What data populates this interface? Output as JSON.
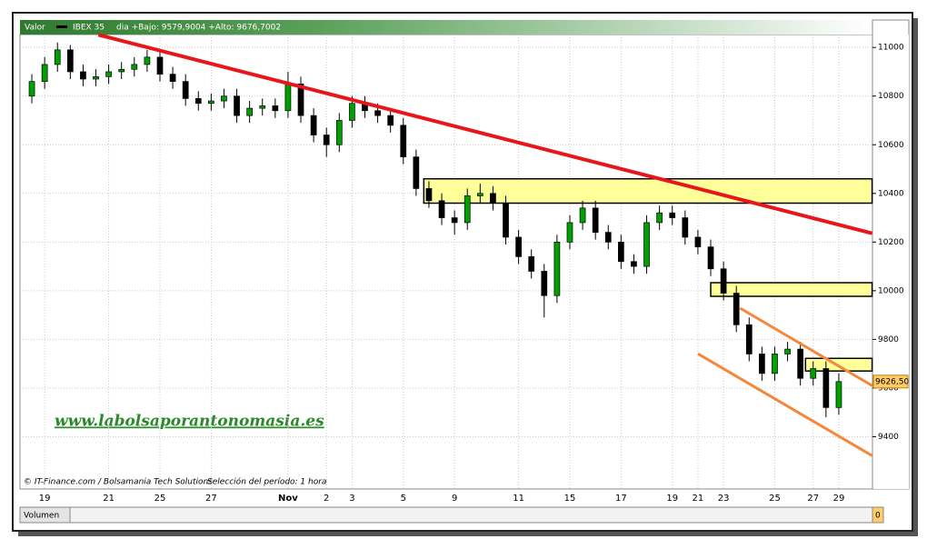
{
  "chart_data": {
    "type": "candlestick",
    "header": {
      "label": "Valor",
      "symbol": "IBEX 35",
      "range_text": "dia +Bajo: 9579,9004 +Alto: 9676,7002"
    },
    "footer": {
      "source": "© IT-Finance.com / Bolsamania Tech Solutions",
      "period": "Selección del período: 1 hora"
    },
    "watermark": "www.labolsaporantonomasia.es",
    "volume_label": "Volumen",
    "volume_value": "0",
    "categories": [
      null,
      "19",
      null,
      null,
      null,
      null,
      "21",
      null,
      null,
      null,
      "25",
      null,
      null,
      null,
      "27",
      null,
      null,
      null,
      null,
      null,
      "Nov",
      null,
      null,
      "2",
      null,
      "3",
      null,
      null,
      null,
      "5",
      null,
      null,
      null,
      "9",
      null,
      null,
      null,
      null,
      "11",
      null,
      null,
      null,
      "15",
      null,
      null,
      null,
      "17",
      null,
      null,
      null,
      "19",
      null,
      "21",
      null,
      "23",
      null,
      null,
      null,
      "25",
      null,
      null,
      "27",
      null,
      "29"
    ],
    "open": [
      10800,
      10860,
      10930,
      10990,
      10900,
      10870,
      10880,
      10900,
      10910,
      10930,
      10960,
      10890,
      10860,
      10790,
      10770,
      10780,
      10800,
      10720,
      10750,
      10760,
      10740,
      10850,
      10720,
      10640,
      10600,
      10700,
      10770,
      10740,
      10720,
      10680,
      10550,
      10420,
      10370,
      10300,
      10280,
      10390,
      10400,
      10360,
      10220,
      10140,
      10080,
      9980,
      10200,
      10280,
      10340,
      10240,
      10200,
      10120,
      10100,
      10280,
      10320,
      10300,
      10220,
      10180,
      10090,
      9990,
      9860,
      9740,
      9660,
      9740,
      9760,
      9640,
      9680,
      9520
    ],
    "high": [
      10890,
      10960,
      11020,
      11010,
      10930,
      10910,
      10930,
      10940,
      10960,
      10990,
      10990,
      10920,
      10890,
      10820,
      10810,
      10830,
      10830,
      10780,
      10790,
      10790,
      10900,
      10880,
      10750,
      10670,
      10730,
      10800,
      10800,
      10770,
      10750,
      10710,
      10580,
      10450,
      10400,
      10330,
      10420,
      10440,
      10430,
      10390,
      10250,
      10170,
      10110,
      10230,
      10310,
      10370,
      10370,
      10270,
      10230,
      10150,
      10310,
      10350,
      10350,
      10330,
      10250,
      10210,
      10120,
      10020,
      9890,
      9770,
      9770,
      9790,
      9790,
      9710,
      9710,
      9660
    ],
    "low": [
      10770,
      10830,
      10900,
      10870,
      10840,
      10840,
      10850,
      10870,
      10880,
      10900,
      10860,
      10830,
      10760,
      10740,
      10740,
      10750,
      10690,
      10690,
      10720,
      10710,
      10710,
      10690,
      10610,
      10550,
      10570,
      10670,
      10710,
      10690,
      10650,
      10520,
      10390,
      10340,
      10270,
      10230,
      10250,
      10360,
      10330,
      10190,
      10110,
      10050,
      9890,
      9950,
      10170,
      10250,
      10210,
      10170,
      10090,
      10070,
      10070,
      10250,
      10270,
      10190,
      10150,
      10060,
      9960,
      9830,
      9710,
      9630,
      9630,
      9710,
      9610,
      9610,
      9480,
      9490
    ],
    "close": [
      10860,
      10930,
      10990,
      10900,
      10870,
      10880,
      10900,
      10910,
      10930,
      10960,
      10890,
      10860,
      10790,
      10770,
      10780,
      10800,
      10720,
      10750,
      10760,
      10740,
      10850,
      10720,
      10640,
      10600,
      10700,
      10770,
      10740,
      10720,
      10680,
      10550,
      10420,
      10370,
      10300,
      10280,
      10390,
      10400,
      10360,
      10220,
      10140,
      10080,
      9980,
      10200,
      10280,
      10340,
      10240,
      10200,
      10120,
      10100,
      10280,
      10320,
      10300,
      10220,
      10180,
      10090,
      9990,
      9860,
      9740,
      9660,
      9740,
      9760,
      9640,
      9680,
      9520,
      9626.5
    ],
    "up_color": "#00a000",
    "down_color": "#000000",
    "ylim": [
      9185,
      11053
    ],
    "yticks": [
      9400,
      9600,
      9800,
      10000,
      10200,
      10400,
      10600,
      10800,
      11000
    ],
    "grid": true,
    "last_price": {
      "value": 9626.5,
      "label": "9626,50"
    },
    "annotations": {
      "lines": [
        {
          "color": "#e8161b",
          "x": [
            5.2,
            65.6
          ],
          "y": [
            11052,
            10236
          ]
        },
        {
          "color": "#f5873a",
          "x": [
            55.3,
            65.6
          ],
          "y": [
            9928,
            9610
          ]
        },
        {
          "color": "#f5873a",
          "x": [
            52,
            65.6
          ],
          "y": [
            9741,
            9322
          ]
        }
      ],
      "zones": [
        {
          "color": "#ffff99",
          "x": [
            30.6,
            65.6
          ],
          "y": [
            10360,
            10460
          ]
        },
        {
          "color": "#ffff99",
          "x": [
            53,
            65.6
          ],
          "y": [
            9977,
            10033
          ]
        },
        {
          "color": "#ffff99",
          "x": [
            60.4,
            65.6
          ],
          "y": [
            9670,
            9722
          ]
        }
      ]
    }
  }
}
